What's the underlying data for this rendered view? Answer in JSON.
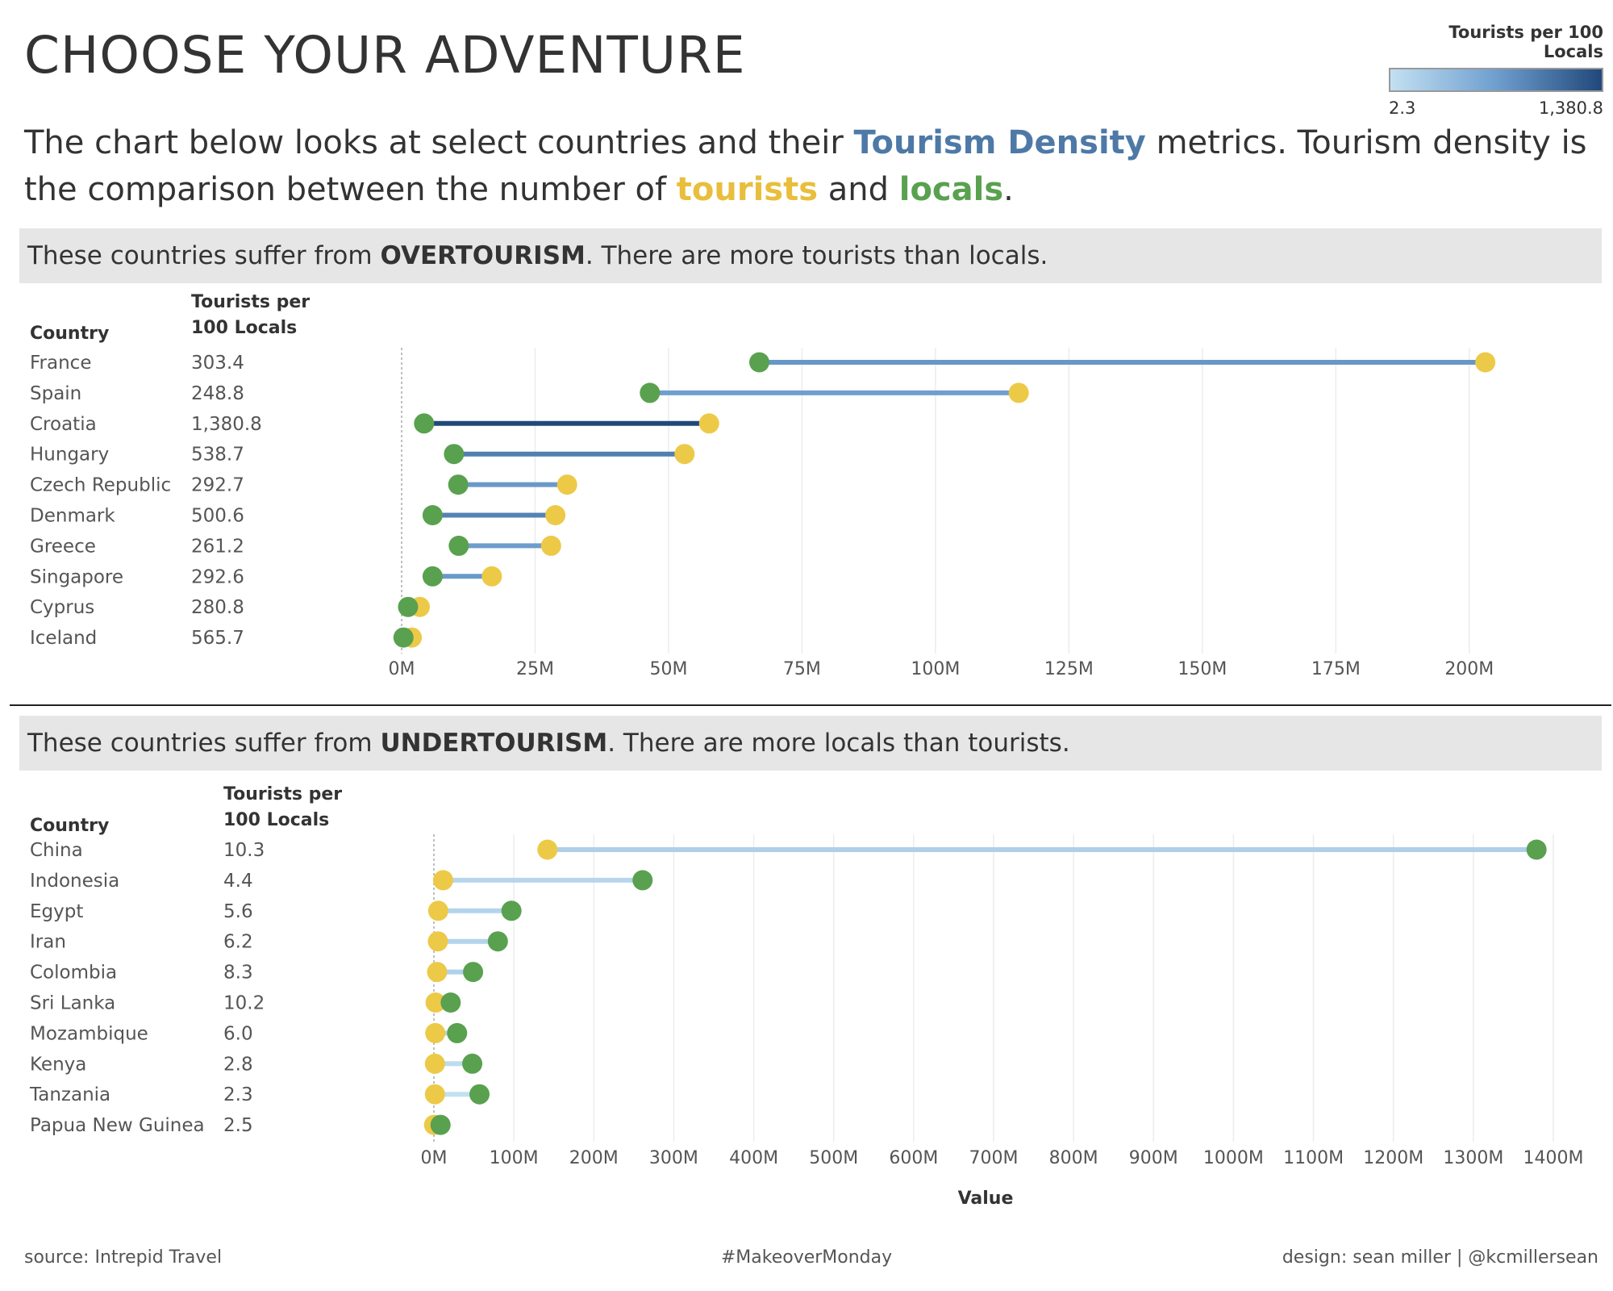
{
  "title": "CHOOSE YOUR ADVENTURE",
  "legend": {
    "title": "Tourists per 100 Locals",
    "min_label": "2.3",
    "max_label": "1,380.8",
    "min_value": 2.3,
    "max_value": 1380.8,
    "color_low": "#c3e0f2",
    "color_high": "#21487a"
  },
  "subtitle": {
    "part1": "The chart below looks at select countries and their ",
    "highlight1": "Tourism Density",
    "part2": " metrics. Tourism density is the comparison between the number of ",
    "highlight2": "tourists",
    "part3": " and ",
    "highlight3": "locals",
    "part4": "."
  },
  "colors": {
    "tourists": "#edc948",
    "locals": "#59a14f",
    "title_blue": "#4e79a7"
  },
  "footer": {
    "source": "source: Intrepid Travel",
    "tag": "#MakeoverMonday",
    "credit": "design: sean miller | @kcmillersean"
  },
  "chart_data": [
    {
      "type": "dumbbell",
      "banner_prefix": "These countries suffer from ",
      "banner_bold": "OVERTOURISM",
      "banner_suffix": ". There are more tourists than locals.",
      "col_country": "Country",
      "col_density_line1": "Tourists per",
      "col_density_line2": "100 Locals",
      "xlim": [
        0,
        210
      ],
      "xticks": [
        0,
        25,
        50,
        75,
        100,
        125,
        150,
        175,
        200
      ],
      "tick_labels": [
        "0M",
        "25M",
        "50M",
        "75M",
        "100M",
        "125M",
        "150M",
        "175M",
        "200M"
      ],
      "xlabel": "",
      "rows": [
        {
          "country": "France",
          "density": 303.4,
          "density_label": "303.4",
          "locals": 67,
          "tourists": 203
        },
        {
          "country": "Spain",
          "density": 248.8,
          "density_label": "248.8",
          "locals": 46.5,
          "tourists": 115.6
        },
        {
          "country": "Croatia",
          "density": 1380.8,
          "density_label": "1,380.8",
          "locals": 4.2,
          "tourists": 57.6
        },
        {
          "country": "Hungary",
          "density": 538.7,
          "density_label": "538.7",
          "locals": 9.8,
          "tourists": 53
        },
        {
          "country": "Czech Republic",
          "density": 292.7,
          "density_label": "292.7",
          "locals": 10.6,
          "tourists": 31
        },
        {
          "country": "Denmark",
          "density": 500.6,
          "density_label": "500.6",
          "locals": 5.8,
          "tourists": 28.8
        },
        {
          "country": "Greece",
          "density": 261.2,
          "density_label": "261.2",
          "locals": 10.7,
          "tourists": 28
        },
        {
          "country": "Singapore",
          "density": 292.6,
          "density_label": "292.6",
          "locals": 5.8,
          "tourists": 16.9
        },
        {
          "country": "Cyprus",
          "density": 280.8,
          "density_label": "280.8",
          "locals": 1.2,
          "tourists": 3.4
        },
        {
          "country": "Iceland",
          "density": 565.7,
          "density_label": "565.7",
          "locals": 0.34,
          "tourists": 1.9
        }
      ]
    },
    {
      "type": "dumbbell",
      "banner_prefix": "These countries suffer from ",
      "banner_bold": "UNDERTOURISM",
      "banner_suffix": ". There are more locals than tourists.",
      "col_country": "Country",
      "col_density_line1": "Tourists per",
      "col_density_line2": "100 Locals",
      "xlim": [
        0,
        1400
      ],
      "xticks": [
        0,
        100,
        200,
        300,
        400,
        500,
        600,
        700,
        800,
        900,
        1000,
        1100,
        1200,
        1300,
        1400
      ],
      "tick_labels": [
        "0M",
        "100M",
        "200M",
        "300M",
        "400M",
        "500M",
        "600M",
        "700M",
        "800M",
        "900M",
        "1000M",
        "1100M",
        "1200M",
        "1300M",
        "1400M"
      ],
      "xlabel": "Value",
      "rows": [
        {
          "country": "China",
          "density": 10.3,
          "density_label": "10.3",
          "locals": 1379,
          "tourists": 142
        },
        {
          "country": "Indonesia",
          "density": 4.4,
          "density_label": "4.4",
          "locals": 261,
          "tourists": 11.5
        },
        {
          "country": "Egypt",
          "density": 5.6,
          "density_label": "5.6",
          "locals": 97,
          "tourists": 5.4
        },
        {
          "country": "Iran",
          "density": 6.2,
          "density_label": "6.2",
          "locals": 80,
          "tourists": 5
        },
        {
          "country": "Colombia",
          "density": 8.3,
          "density_label": "8.3",
          "locals": 49,
          "tourists": 4
        },
        {
          "country": "Sri Lanka",
          "density": 10.2,
          "density_label": "10.2",
          "locals": 21,
          "tourists": 2.1
        },
        {
          "country": "Mozambique",
          "density": 6.0,
          "density_label": "6.0",
          "locals": 29,
          "tourists": 1.7
        },
        {
          "country": "Kenya",
          "density": 2.8,
          "density_label": "2.8",
          "locals": 48,
          "tourists": 1.3
        },
        {
          "country": "Tanzania",
          "density": 2.3,
          "density_label": "2.3",
          "locals": 57,
          "tourists": 1.3
        },
        {
          "country": "Papua New Guinea",
          "density": 2.5,
          "density_label": "2.5",
          "locals": 8.3,
          "tourists": 0.2
        }
      ]
    }
  ]
}
